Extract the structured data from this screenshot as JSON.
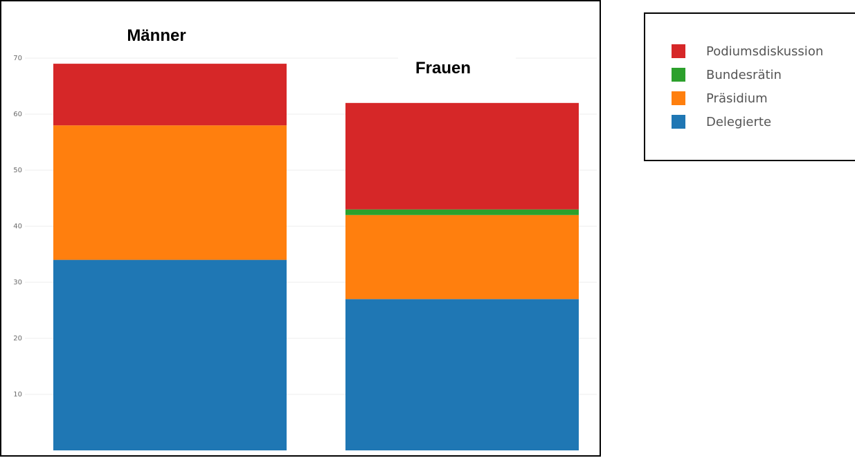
{
  "chart_data": {
    "type": "bar",
    "stacked": true,
    "categories": [
      "Männer",
      "Frauen"
    ],
    "series": [
      {
        "name": "Delegierte",
        "color": "#1f77b4",
        "values": [
          34,
          27
        ]
      },
      {
        "name": "Präsidium",
        "color": "#ff7f0e",
        "values": [
          24,
          15
        ]
      },
      {
        "name": "Bundesrätin",
        "color": "#2ca02c",
        "values": [
          0,
          1
        ]
      },
      {
        "name": "Podiumsdiskussion",
        "color": "#d62728",
        "values": [
          11,
          19
        ]
      }
    ],
    "legend_order": [
      "Podiumsdiskussion",
      "Bundesrätin",
      "Präsidium",
      "Delegierte"
    ],
    "ylim": [
      0,
      70
    ],
    "yticks": [
      10,
      20,
      30,
      40,
      50,
      60,
      70
    ],
    "grid": true,
    "legend_position": "right"
  }
}
